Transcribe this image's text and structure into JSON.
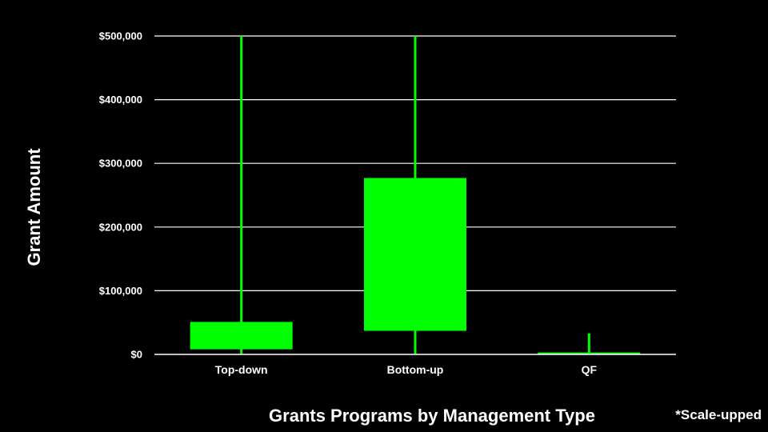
{
  "chart_data": {
    "type": "box",
    "xlabel": "Grants Programs by Management Type",
    "ylabel": "Grant Amount",
    "note": "*Scale-upped",
    "ylim": [
      0,
      500000
    ],
    "yticks": [
      0,
      100000,
      200000,
      300000,
      400000,
      500000
    ],
    "ytick_labels": [
      "$0",
      "$100,000",
      "$200,000",
      "$300,000",
      "$400,000",
      "$500,000"
    ],
    "grid": true,
    "color": "#00ff00",
    "categories": [
      "Top-down",
      "Bottom-up",
      "QF"
    ],
    "boxes": [
      {
        "category": "Top-down",
        "whisker_low": 0,
        "q1": 8000,
        "q3": 51000,
        "whisker_high": 500000
      },
      {
        "category": "Bottom-up",
        "whisker_low": 0,
        "q1": 37000,
        "q3": 277000,
        "whisker_high": 500000
      },
      {
        "category": "QF",
        "whisker_low": 0,
        "q1": 1000,
        "q3": 3000,
        "whisker_high": 33000
      }
    ]
  }
}
